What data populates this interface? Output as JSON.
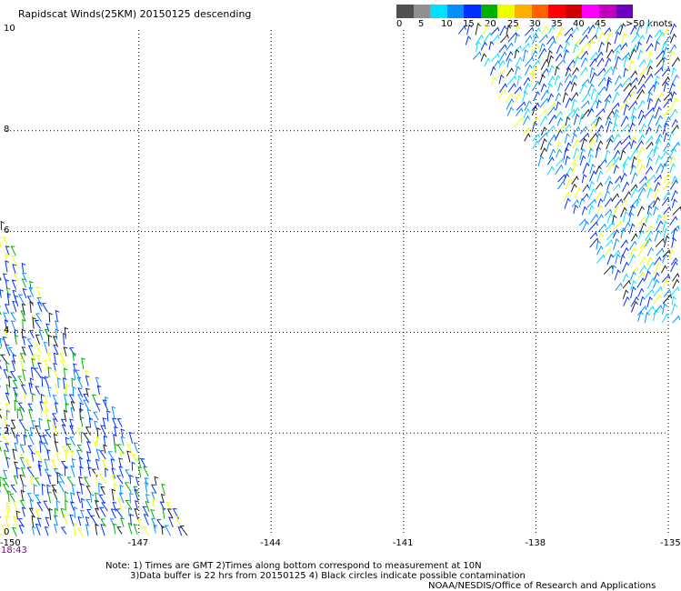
{
  "title": "Rapidscat Winds(25KM) 20150125 descending",
  "legend": {
    "unit_label": ">50 knots",
    "labels": [
      "0",
      "5",
      "10",
      "15",
      "20",
      "25",
      "30",
      "35",
      "40",
      "45"
    ],
    "colors": [
      "#505050",
      "#909090",
      "#00e0ff",
      "#0090ff",
      "#0030ff",
      "#00b000",
      "#f0ff00",
      "#ffb000",
      "#ff6000",
      "#ff0000",
      "#d00000",
      "#ff00ff",
      "#c000c0",
      "#7000c0"
    ]
  },
  "axes": {
    "x_ticks": [
      "-150",
      "-147",
      "-144",
      "-141",
      "-138",
      "-135"
    ],
    "y_ticks": [
      "0",
      "2",
      "4",
      "6",
      "8",
      "10"
    ],
    "x_range": [
      -150,
      -135
    ],
    "y_range": [
      0,
      10
    ]
  },
  "time_label": "18:43",
  "notes": {
    "line1": "Note: 1) Times are GMT 2)Times along bottom correspond to measurement at 10N",
    "line2": "3)Data buffer is 22 hrs from 20150125 4) Black circles indicate possible contamination",
    "credit": "NOAA/NESDIS/Office of Research and Applications"
  },
  "wind_swaths": [
    {
      "name": "northeast-swath",
      "color_mix": [
        "#00e0ff",
        "#0090ff",
        "#0030ff",
        "#202020",
        "#f0ff00"
      ]
    },
    {
      "name": "southwest-swath",
      "color_mix": [
        "#0030ff",
        "#0090ff",
        "#00b000",
        "#f0ff00",
        "#202020"
      ]
    }
  ]
}
